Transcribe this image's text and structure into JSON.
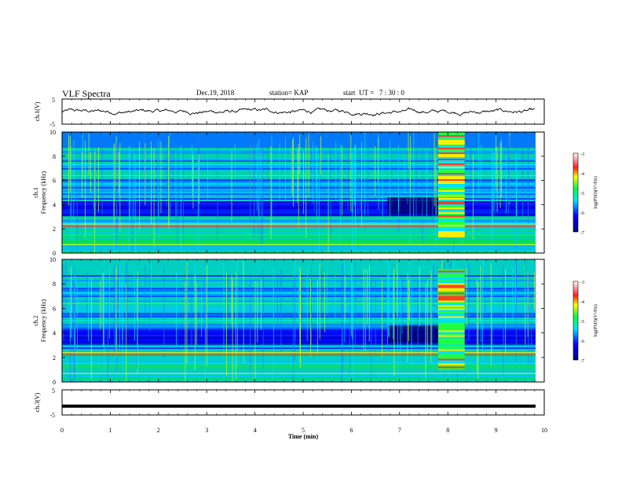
{
  "header": {
    "title": "VLF Spectra",
    "date": "Dec.19, 2018",
    "station": "station= KAP",
    "start": "start  UT =   7 : 30 : 0"
  },
  "chart_data": [
    {
      "type": "line",
      "ylabel": "ch.1(V)",
      "ylim": [
        -5,
        5
      ],
      "yticks": [
        "5",
        "-5"
      ],
      "xlim": [
        0,
        10
      ],
      "description_values": "waveform oscillating roughly between -1.5 and 1.5 V around 0"
    },
    {
      "type": "heatmap",
      "ylabel": "ch.1\nFrequency (kHz)",
      "ylim": [
        0,
        10
      ],
      "yticks": [
        "0",
        "2",
        "4",
        "6",
        "8",
        "10"
      ],
      "xlim": [
        0,
        10
      ],
      "colorbar": {
        "label": "log(PSD)(V²/Hz)",
        "range": [
          -7,
          -3
        ],
        "ticks": [
          "-3",
          "-4",
          "-5",
          "-6",
          "-7"
        ]
      },
      "bright_block": {
        "x": [
          7.8,
          8.35
        ],
        "y": [
          1.3,
          10
        ]
      }
    },
    {
      "type": "heatmap",
      "ylabel": "ch.2\nFrequency (kHz)",
      "ylim": [
        0,
        10
      ],
      "yticks": [
        "0",
        "2",
        "4",
        "6",
        "8",
        "10"
      ],
      "xlim": [
        0,
        10
      ],
      "colorbar": {
        "label": "log(PSD)(V²/Hz)",
        "range": [
          -7,
          -3
        ],
        "ticks": [
          "-3",
          "-4",
          "-5",
          "-6",
          "-7"
        ]
      },
      "bright_block": {
        "x": [
          7.8,
          8.35
        ],
        "y": [
          1,
          9.2
        ]
      }
    },
    {
      "type": "line",
      "ylabel": "ch.3(V)",
      "ylim": [
        -5,
        5
      ],
      "yticks": [
        "5",
        "-5"
      ],
      "xlim": [
        0,
        10
      ],
      "xlabel": "Time  (min)",
      "xticks": [
        "0",
        "1",
        "2",
        "3",
        "4",
        "5",
        "6",
        "7",
        "8",
        "9",
        "10"
      ],
      "values_constant": -1.5
    }
  ]
}
